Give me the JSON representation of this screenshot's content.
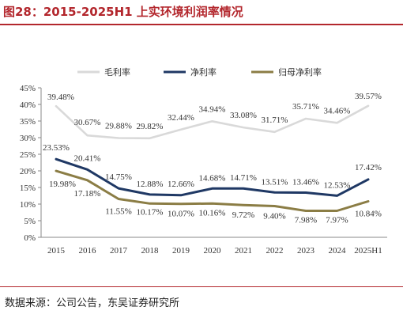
{
  "title": "图28：2015-2025H1 上实环境利润率情况",
  "source": "数据来源：公司公告，东吴证券研究所",
  "colors": {
    "title": "#b3272d",
    "rule": "#b3272d",
    "axis": "#888888",
    "text": "#333333"
  },
  "chart_data": {
    "type": "line",
    "title": "",
    "xlabel": "",
    "ylabel": "",
    "categories": [
      "2015",
      "2016",
      "2017",
      "2018",
      "2019",
      "2020",
      "2021",
      "2022",
      "2023",
      "2024",
      "2025H1"
    ],
    "yticks": [
      "0%",
      "5%",
      "10%",
      "15%",
      "20%",
      "25%",
      "30%",
      "35%",
      "40%",
      "45%"
    ],
    "ylim": [
      0,
      45
    ],
    "grid": false,
    "legend_position": "top",
    "series": [
      {
        "name": "毛利率",
        "color": "#d9d9d9",
        "values": [
          39.48,
          30.67,
          29.88,
          29.82,
          32.44,
          34.94,
          33.08,
          31.71,
          35.71,
          34.46,
          39.57
        ],
        "labels": [
          "39.48%",
          "30.67%",
          "29.88%",
          "29.82%",
          "32.44%",
          "34.94%",
          "33.08%",
          "31.71%",
          "35.71%",
          "34.46%",
          "39.57%"
        ]
      },
      {
        "name": "净利率",
        "color": "#1f3864",
        "values": [
          23.53,
          20.41,
          14.75,
          12.88,
          12.66,
          14.68,
          14.71,
          13.51,
          13.46,
          12.53,
          17.42
        ],
        "labels": [
          "23.53%",
          "20.41%",
          "14.75%",
          "12.88%",
          "12.66%",
          "14.68%",
          "14.71%",
          "13.51%",
          "13.46%",
          "12.53%",
          "17.42%"
        ]
      },
      {
        "name": "归母净利率",
        "color": "#8b7d45",
        "values": [
          19.98,
          17.18,
          11.55,
          10.17,
          10.07,
          10.16,
          9.72,
          9.4,
          7.98,
          7.97,
          10.84
        ],
        "labels": [
          "19.98%",
          "17.18%",
          "11.55%",
          "10.17%",
          "10.07%",
          "10.16%",
          "9.72%",
          "9.40%",
          "7.98%",
          "7.97%",
          "10.84%"
        ]
      }
    ]
  }
}
